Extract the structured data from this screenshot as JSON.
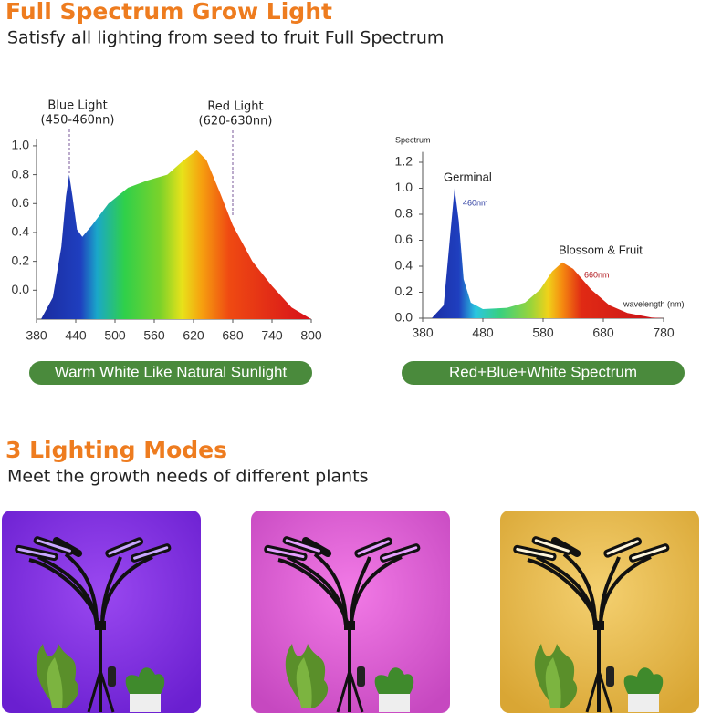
{
  "header": {
    "title": "Full Spectrum Grow Light",
    "subtitle": "Satisfy all lighting from seed to fruit Full Spectrum"
  },
  "chart_data": [
    {
      "type": "area",
      "annotations": [
        {
          "text": "Blue Light",
          "detail": "(450-460nn)"
        },
        {
          "text": "Red Light",
          "detail": "(620-630nn)"
        }
      ],
      "x": [
        387,
        405,
        418,
        425,
        430,
        435,
        442,
        450,
        465,
        490,
        520,
        550,
        580,
        605,
        625,
        640,
        660,
        680,
        710,
        740,
        770,
        800
      ],
      "values": [
        -0.2,
        -0.05,
        0.3,
        0.65,
        0.8,
        0.65,
        0.42,
        0.37,
        0.45,
        0.6,
        0.71,
        0.76,
        0.8,
        0.9,
        0.97,
        0.9,
        0.68,
        0.45,
        0.2,
        0.03,
        -0.12,
        -0.2
      ],
      "xlim": [
        380,
        800
      ],
      "xticks": [
        380,
        440,
        500,
        560,
        620,
        680,
        740,
        800
      ],
      "ylim": [
        -0.2,
        1.05
      ],
      "yticks": [
        {
          "value": 0,
          "label": "0.0"
        },
        {
          "value": 0.2,
          "label": "0.2"
        },
        {
          "value": 0.4,
          "label": "0.4"
        },
        {
          "value": 0.6,
          "label": "0.6"
        },
        {
          "value": 0.8,
          "label": "0.8"
        },
        {
          "value": 1,
          "label": "1.0"
        }
      ],
      "caption": "Warm White Like Natural Sunlight"
    },
    {
      "type": "area",
      "ylabel": "Spectrum",
      "xlabel": "wavelength (nm)",
      "annotations": [
        {
          "text": "Germinal",
          "detail": "460nm"
        },
        {
          "text": "Blossom & Fruit",
          "detail": "660nm"
        }
      ],
      "x": [
        395,
        415,
        425,
        433,
        440,
        448,
        460,
        480,
        520,
        550,
        575,
        595,
        612,
        630,
        660,
        690,
        720,
        760,
        780
      ],
      "values": [
        0,
        0.1,
        0.6,
        1.0,
        0.75,
        0.3,
        0.12,
        0.07,
        0.08,
        0.12,
        0.22,
        0.36,
        0.43,
        0.38,
        0.22,
        0.1,
        0.04,
        0.005,
        0
      ],
      "xlim": [
        380,
        780
      ],
      "xticks": [
        380,
        480,
        580,
        680,
        780
      ],
      "ylim": [
        0,
        1.28
      ],
      "yticks": [
        {
          "value": 0,
          "label": "0.0"
        },
        {
          "value": 0.2,
          "label": "0.2"
        },
        {
          "value": 0.4,
          "label": "0.4"
        },
        {
          "value": 0.6,
          "label": "0.6"
        },
        {
          "value": 0.8,
          "label": "0.8"
        },
        {
          "value": 1,
          "label": "1.0"
        },
        {
          "value": 1.2,
          "label": "1.2"
        }
      ],
      "caption": "Red+Blue+White Spectrum"
    }
  ],
  "modes": {
    "title": "3 Lighting Modes",
    "subtitle": "Meet the growth needs of different plants"
  }
}
